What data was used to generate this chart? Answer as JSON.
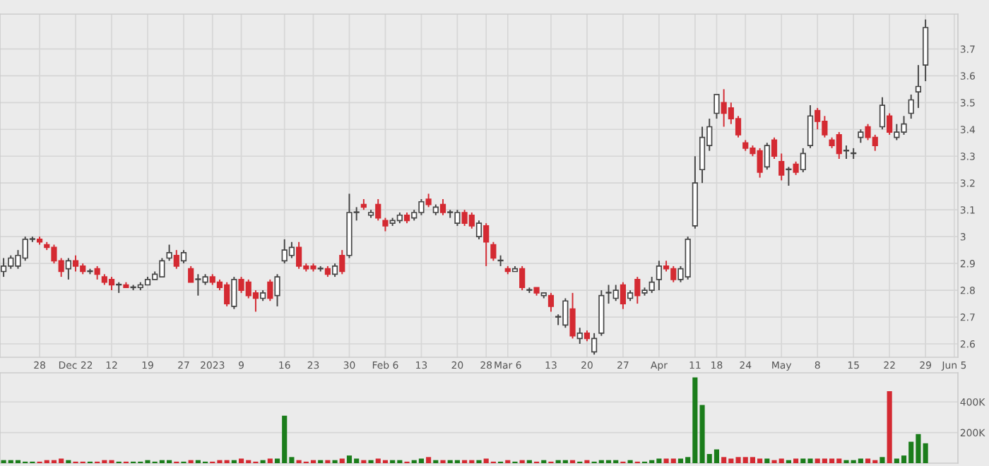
{
  "chart_data": [
    {
      "type": "candlestick",
      "grid": true,
      "ylim": [
        2.55,
        3.83
      ],
      "yticks": [
        2.6,
        2.7,
        2.8,
        2.9,
        3,
        3.1,
        3.2,
        3.3,
        3.4,
        3.5,
        3.6,
        3.7
      ],
      "categories": [
        null,
        null,
        null,
        null,
        null,
        "28",
        null,
        null,
        null,
        null,
        "Dec 22",
        null,
        null,
        null,
        null,
        "12",
        null,
        null,
        null,
        null,
        "19",
        null,
        null,
        null,
        null,
        "27",
        null,
        null,
        null,
        "2023",
        null,
        null,
        null,
        "9",
        null,
        null,
        null,
        null,
        null,
        "16",
        null,
        null,
        null,
        "23",
        null,
        null,
        null,
        null,
        "30",
        null,
        null,
        null,
        null,
        "Feb 6",
        null,
        null,
        null,
        null,
        "13",
        null,
        null,
        null,
        null,
        "20",
        null,
        null,
        null,
        "28",
        null,
        null,
        "Mar 6",
        null,
        null,
        null,
        null,
        null,
        "13",
        null,
        null,
        null,
        null,
        "20",
        null,
        null,
        null,
        null,
        "27",
        null,
        null,
        null,
        null,
        "Apr",
        null,
        null,
        null,
        null,
        "11",
        null,
        null,
        "18",
        null,
        null,
        null,
        "24",
        null,
        null,
        null,
        null,
        "May",
        null,
        null,
        null,
        null,
        "8",
        null,
        null,
        null,
        null,
        "15",
        null,
        null,
        null,
        null,
        "22",
        null,
        null,
        null,
        null,
        "29",
        null,
        null,
        null,
        "Jun 5"
      ],
      "ohlc": [
        [
          2.87,
          2.92,
          2.85,
          2.89
        ],
        [
          2.89,
          2.93,
          2.88,
          2.92
        ],
        [
          2.89,
          2.95,
          2.88,
          2.93
        ],
        [
          2.92,
          3.0,
          2.91,
          2.99
        ],
        [
          2.99,
          3.0,
          2.98,
          2.99
        ],
        [
          2.99,
          3.0,
          2.97,
          2.98
        ],
        [
          2.97,
          2.98,
          2.95,
          2.96
        ],
        [
          2.96,
          2.97,
          2.9,
          2.91
        ],
        [
          2.91,
          2.92,
          2.85,
          2.87
        ],
        [
          2.88,
          2.92,
          2.84,
          2.91
        ],
        [
          2.91,
          2.93,
          2.87,
          2.89
        ],
        [
          2.89,
          2.9,
          2.86,
          2.87
        ],
        [
          2.87,
          2.88,
          2.86,
          2.87
        ],
        [
          2.88,
          2.89,
          2.84,
          2.86
        ],
        [
          2.85,
          2.86,
          2.82,
          2.83
        ],
        [
          2.84,
          2.85,
          2.8,
          2.82
        ],
        [
          2.82,
          2.83,
          2.79,
          2.82
        ],
        [
          2.82,
          2.83,
          2.81,
          2.81
        ],
        [
          2.81,
          2.82,
          2.8,
          2.81
        ],
        [
          2.81,
          2.83,
          2.8,
          2.82
        ],
        [
          2.82,
          2.85,
          2.82,
          2.84
        ],
        [
          2.84,
          2.87,
          2.84,
          2.86
        ],
        [
          2.85,
          2.92,
          2.85,
          2.91
        ],
        [
          2.92,
          2.97,
          2.91,
          2.94
        ],
        [
          2.93,
          2.95,
          2.88,
          2.89
        ],
        [
          2.91,
          2.95,
          2.9,
          2.94
        ],
        [
          2.88,
          2.89,
          2.83,
          2.83
        ],
        [
          2.84,
          2.86,
          2.78,
          2.84
        ],
        [
          2.83,
          2.86,
          2.82,
          2.85
        ],
        [
          2.85,
          2.86,
          2.82,
          2.83
        ],
        [
          2.83,
          2.84,
          2.8,
          2.81
        ],
        [
          2.82,
          2.83,
          2.74,
          2.75
        ],
        [
          2.74,
          2.85,
          2.73,
          2.84
        ],
        [
          2.84,
          2.85,
          2.79,
          2.8
        ],
        [
          2.83,
          2.84,
          2.77,
          2.78
        ],
        [
          2.79,
          2.8,
          2.72,
          2.77
        ],
        [
          2.77,
          2.8,
          2.76,
          2.79
        ],
        [
          2.83,
          2.84,
          2.76,
          2.77
        ],
        [
          2.78,
          2.86,
          2.74,
          2.85
        ],
        [
          2.91,
          2.99,
          2.9,
          2.95
        ],
        [
          2.93,
          2.98,
          2.92,
          2.96
        ],
        [
          2.96,
          2.98,
          2.88,
          2.89
        ],
        [
          2.89,
          2.9,
          2.87,
          2.88
        ],
        [
          2.89,
          2.9,
          2.87,
          2.88
        ],
        [
          2.88,
          2.89,
          2.87,
          2.88
        ],
        [
          2.88,
          2.89,
          2.85,
          2.86
        ],
        [
          2.86,
          2.9,
          2.85,
          2.89
        ],
        [
          2.93,
          2.95,
          2.86,
          2.87
        ],
        [
          2.93,
          3.16,
          2.92,
          3.09
        ],
        [
          3.09,
          3.11,
          3.06,
          3.09
        ],
        [
          3.12,
          3.14,
          3.1,
          3.11
        ],
        [
          3.08,
          3.1,
          3.07,
          3.09
        ],
        [
          3.12,
          3.14,
          3.06,
          3.07
        ],
        [
          3.06,
          3.07,
          3.02,
          3.04
        ],
        [
          3.05,
          3.07,
          3.04,
          3.06
        ],
        [
          3.06,
          3.09,
          3.05,
          3.08
        ],
        [
          3.08,
          3.09,
          3.05,
          3.06
        ],
        [
          3.07,
          3.1,
          3.06,
          3.09
        ],
        [
          3.09,
          3.14,
          3.08,
          3.13
        ],
        [
          3.14,
          3.16,
          3.11,
          3.12
        ],
        [
          3.09,
          3.12,
          3.08,
          3.11
        ],
        [
          3.12,
          3.14,
          3.08,
          3.09
        ],
        [
          3.09,
          3.1,
          3.07,
          3.09
        ],
        [
          3.05,
          3.1,
          3.04,
          3.09
        ],
        [
          3.09,
          3.1,
          3.04,
          3.05
        ],
        [
          3.08,
          3.09,
          3.03,
          3.04
        ],
        [
          3.0,
          3.06,
          2.99,
          3.05
        ],
        [
          3.04,
          3.05,
          2.89,
          2.98
        ],
        [
          2.97,
          2.98,
          2.91,
          2.92
        ],
        [
          2.91,
          2.93,
          2.89,
          2.91
        ],
        [
          2.88,
          2.89,
          2.86,
          2.87
        ],
        [
          2.87,
          2.89,
          2.87,
          2.88
        ],
        [
          2.88,
          2.89,
          2.8,
          2.81
        ],
        [
          2.8,
          2.81,
          2.79,
          2.8
        ],
        [
          2.81,
          2.81,
          2.78,
          2.79
        ],
        [
          2.78,
          2.79,
          2.77,
          2.79
        ],
        [
          2.78,
          2.79,
          2.72,
          2.74
        ],
        [
          2.7,
          2.71,
          2.67,
          2.7
        ],
        [
          2.67,
          2.77,
          2.66,
          2.76
        ],
        [
          2.73,
          2.79,
          2.62,
          2.63
        ],
        [
          2.62,
          2.66,
          2.6,
          2.64
        ],
        [
          2.64,
          2.65,
          2.61,
          2.62
        ],
        [
          2.57,
          2.64,
          2.56,
          2.62
        ],
        [
          2.64,
          2.8,
          2.63,
          2.78
        ],
        [
          2.79,
          2.82,
          2.75,
          2.79
        ],
        [
          2.77,
          2.82,
          2.76,
          2.8
        ],
        [
          2.82,
          2.83,
          2.73,
          2.75
        ],
        [
          2.77,
          2.8,
          2.76,
          2.79
        ],
        [
          2.84,
          2.85,
          2.75,
          2.78
        ],
        [
          2.79,
          2.81,
          2.78,
          2.8
        ],
        [
          2.8,
          2.85,
          2.79,
          2.83
        ],
        [
          2.84,
          2.91,
          2.8,
          2.89
        ],
        [
          2.89,
          2.91,
          2.87,
          2.88
        ],
        [
          2.88,
          2.89,
          2.83,
          2.84
        ],
        [
          2.84,
          2.89,
          2.83,
          2.88
        ],
        [
          2.85,
          3.0,
          2.84,
          2.99
        ],
        [
          3.04,
          3.3,
          3.03,
          3.2
        ],
        [
          3.25,
          3.41,
          3.2,
          3.37
        ],
        [
          3.34,
          3.44,
          3.32,
          3.41
        ],
        [
          3.46,
          3.53,
          3.44,
          3.53
        ],
        [
          3.5,
          3.55,
          3.41,
          3.46
        ],
        [
          3.48,
          3.5,
          3.42,
          3.44
        ],
        [
          3.44,
          3.45,
          3.37,
          3.38
        ],
        [
          3.35,
          3.36,
          3.32,
          3.33
        ],
        [
          3.33,
          3.34,
          3.3,
          3.31
        ],
        [
          3.32,
          3.33,
          3.22,
          3.24
        ],
        [
          3.26,
          3.35,
          3.25,
          3.34
        ],
        [
          3.36,
          3.37,
          3.29,
          3.3
        ],
        [
          3.28,
          3.31,
          3.21,
          3.23
        ],
        [
          3.25,
          3.26,
          3.19,
          3.25
        ],
        [
          3.27,
          3.28,
          3.23,
          3.24
        ],
        [
          3.25,
          3.33,
          3.24,
          3.31
        ],
        [
          3.34,
          3.49,
          3.33,
          3.45
        ],
        [
          3.47,
          3.48,
          3.4,
          3.43
        ],
        [
          3.43,
          3.45,
          3.37,
          3.38
        ],
        [
          3.36,
          3.37,
          3.33,
          3.34
        ],
        [
          3.38,
          3.39,
          3.29,
          3.31
        ],
        [
          3.32,
          3.34,
          3.29,
          3.32
        ],
        [
          3.31,
          3.33,
          3.29,
          3.31
        ],
        [
          3.37,
          3.4,
          3.35,
          3.39
        ],
        [
          3.41,
          3.42,
          3.36,
          3.37
        ],
        [
          3.37,
          3.38,
          3.32,
          3.34
        ],
        [
          3.41,
          3.52,
          3.4,
          3.49
        ],
        [
          3.45,
          3.46,
          3.38,
          3.39
        ],
        [
          3.37,
          3.42,
          3.36,
          3.39
        ],
        [
          3.39,
          3.45,
          3.38,
          3.42
        ],
        [
          3.46,
          3.53,
          3.44,
          3.51
        ],
        [
          3.54,
          3.64,
          3.48,
          3.56
        ],
        [
          3.64,
          3.81,
          3.58,
          3.78
        ],
        null,
        null,
        null,
        null
      ],
      "colors": [
        "#ffffff",
        "#ffffff",
        "#ffffff",
        "#ffffff",
        "#ffffff",
        "#d42a32",
        "#d42a32",
        "#d42a32",
        "#d42a32",
        "#ffffff",
        "#d42a32",
        "#d42a32",
        "#ffffff",
        "#d42a32",
        "#d42a32",
        "#d42a32",
        "#ffffff",
        "#d42a32",
        "#ffffff",
        "#ffffff",
        "#ffffff",
        "#ffffff",
        "#ffffff",
        "#ffffff",
        "#d42a32",
        "#ffffff",
        "#d42a32",
        "#ffffff",
        "#ffffff",
        "#d42a32",
        "#d42a32",
        "#d42a32",
        "#ffffff",
        "#d42a32",
        "#d42a32",
        "#d42a32",
        "#ffffff",
        "#d42a32",
        "#ffffff",
        "#ffffff",
        "#ffffff",
        "#d42a32",
        "#d42a32",
        "#d42a32",
        "#ffffff",
        "#d42a32",
        "#ffffff",
        "#d42a32",
        "#ffffff",
        "#ffffff",
        "#d42a32",
        "#ffffff",
        "#d42a32",
        "#d42a32",
        "#ffffff",
        "#ffffff",
        "#d42a32",
        "#ffffff",
        "#ffffff",
        "#d42a32",
        "#ffffff",
        "#d42a32",
        "#ffffff",
        "#ffffff",
        "#d42a32",
        "#d42a32",
        "#ffffff",
        "#d42a32",
        "#d42a32",
        "#ffffff",
        "#d42a32",
        "#ffffff",
        "#d42a32",
        "#ffffff",
        "#d42a32",
        "#ffffff",
        "#d42a32",
        "#ffffff",
        "#ffffff",
        "#d42a32",
        "#ffffff",
        "#d42a32",
        "#ffffff",
        "#ffffff",
        "#ffffff",
        "#ffffff",
        "#d42a32",
        "#ffffff",
        "#d42a32",
        "#ffffff",
        "#ffffff",
        "#ffffff",
        "#d42a32",
        "#d42a32",
        "#ffffff",
        "#ffffff",
        "#ffffff",
        "#ffffff",
        "#ffffff",
        "#ffffff",
        "#d42a32",
        "#d42a32",
        "#d42a32",
        "#d42a32",
        "#d42a32",
        "#d42a32",
        "#ffffff",
        "#d42a32",
        "#d42a32",
        "#ffffff",
        "#d42a32",
        "#ffffff",
        "#ffffff",
        "#d42a32",
        "#d42a32",
        "#d42a32",
        "#d42a32",
        "#ffffff",
        "#ffffff",
        "#ffffff",
        "#d42a32",
        "#d42a32",
        "#ffffff",
        "#d42a32",
        "#ffffff",
        "#ffffff",
        "#ffffff",
        "#ffffff",
        "#ffffff",
        null,
        null,
        null,
        null
      ]
    },
    {
      "type": "bar",
      "grid": true,
      "tick_labels": "y",
      "ylim": [
        0,
        590000
      ],
      "yticks": [
        {
          "value": 200000,
          "label": "200K"
        },
        {
          "value": 400000,
          "label": "400K"
        }
      ],
      "categories": [
        null,
        null,
        null,
        null,
        null,
        null,
        null,
        null,
        null,
        null,
        null,
        null,
        null,
        null,
        null,
        null,
        null,
        null,
        null,
        null,
        null,
        null,
        null,
        null,
        null,
        null,
        null,
        null,
        null,
        null,
        null,
        null,
        null,
        null,
        null,
        null,
        null,
        null,
        null,
        null,
        null,
        null,
        null,
        null,
        null,
        null,
        null,
        null,
        null,
        null,
        null,
        null,
        null,
        null,
        null,
        null,
        null,
        null,
        null,
        null,
        null,
        null,
        null,
        null,
        null,
        null,
        null,
        null,
        null,
        null,
        null,
        null,
        null,
        null,
        null,
        null,
        null,
        null,
        null,
        null,
        null,
        null,
        null,
        null,
        null,
        null,
        null,
        null,
        null,
        null,
        null,
        null,
        null,
        null,
        null,
        null,
        null,
        null,
        null,
        null,
        null,
        null,
        null,
        null,
        null,
        null,
        null,
        null,
        null,
        null,
        null,
        null,
        null,
        null,
        null,
        null,
        null,
        null,
        null,
        null,
        null,
        null,
        null,
        null,
        null,
        null,
        null,
        null,
        null,
        null,
        null,
        null,
        null
      ],
      "values": [
        20000,
        20000,
        20000,
        10000,
        10000,
        10000,
        20000,
        20000,
        30000,
        20000,
        10000,
        10000,
        10000,
        10000,
        20000,
        20000,
        10000,
        10000,
        10000,
        10000,
        20000,
        10000,
        20000,
        20000,
        10000,
        10000,
        20000,
        20000,
        10000,
        10000,
        20000,
        20000,
        20000,
        30000,
        20000,
        10000,
        20000,
        30000,
        30000,
        310000,
        40000,
        20000,
        10000,
        20000,
        20000,
        20000,
        20000,
        30000,
        50000,
        30000,
        20000,
        20000,
        30000,
        20000,
        20000,
        20000,
        10000,
        20000,
        30000,
        40000,
        20000,
        20000,
        20000,
        20000,
        20000,
        20000,
        20000,
        30000,
        10000,
        10000,
        20000,
        10000,
        20000,
        20000,
        10000,
        20000,
        10000,
        20000,
        20000,
        20000,
        10000,
        20000,
        10000,
        20000,
        20000,
        20000,
        10000,
        20000,
        10000,
        10000,
        20000,
        30000,
        30000,
        30000,
        30000,
        40000,
        560000,
        380000,
        60000,
        90000,
        40000,
        30000,
        40000,
        40000,
        40000,
        30000,
        30000,
        20000,
        30000,
        20000,
        30000,
        30000,
        30000,
        30000,
        30000,
        30000,
        30000,
        20000,
        20000,
        30000,
        30000,
        20000,
        40000,
        470000,
        30000,
        50000,
        140000,
        190000,
        130000,
        null,
        null,
        null,
        null
      ],
      "colors": [
        "#1b7d1b",
        "#1b7d1b",
        "#1b7d1b",
        "#1b7d1b",
        "#1b7d1b",
        "#d42a32",
        "#d42a32",
        "#d42a32",
        "#d42a32",
        "#1b7d1b",
        "#d42a32",
        "#d42a32",
        "#1b7d1b",
        "#d42a32",
        "#d42a32",
        "#d42a32",
        "#1b7d1b",
        "#d42a32",
        "#1b7d1b",
        "#1b7d1b",
        "#1b7d1b",
        "#1b7d1b",
        "#1b7d1b",
        "#1b7d1b",
        "#d42a32",
        "#1b7d1b",
        "#d42a32",
        "#1b7d1b",
        "#1b7d1b",
        "#d42a32",
        "#d42a32",
        "#d42a32",
        "#1b7d1b",
        "#d42a32",
        "#d42a32",
        "#d42a32",
        "#1b7d1b",
        "#d42a32",
        "#1b7d1b",
        "#1b7d1b",
        "#1b7d1b",
        "#d42a32",
        "#d42a32",
        "#d42a32",
        "#1b7d1b",
        "#d42a32",
        "#1b7d1b",
        "#d42a32",
        "#1b7d1b",
        "#1b7d1b",
        "#d42a32",
        "#1b7d1b",
        "#d42a32",
        "#d42a32",
        "#1b7d1b",
        "#1b7d1b",
        "#d42a32",
        "#1b7d1b",
        "#1b7d1b",
        "#d42a32",
        "#1b7d1b",
        "#d42a32",
        "#1b7d1b",
        "#1b7d1b",
        "#d42a32",
        "#d42a32",
        "#1b7d1b",
        "#d42a32",
        "#d42a32",
        "#1b7d1b",
        "#d42a32",
        "#1b7d1b",
        "#d42a32",
        "#1b7d1b",
        "#d42a32",
        "#1b7d1b",
        "#d42a32",
        "#1b7d1b",
        "#1b7d1b",
        "#d42a32",
        "#1b7d1b",
        "#d42a32",
        "#1b7d1b",
        "#1b7d1b",
        "#1b7d1b",
        "#1b7d1b",
        "#d42a32",
        "#1b7d1b",
        "#d42a32",
        "#1b7d1b",
        "#1b7d1b",
        "#1b7d1b",
        "#d42a32",
        "#d42a32",
        "#1b7d1b",
        "#1b7d1b",
        "#1b7d1b",
        "#1b7d1b",
        "#1b7d1b",
        "#1b7d1b",
        "#d42a32",
        "#d42a32",
        "#d42a32",
        "#d42a32",
        "#d42a32",
        "#d42a32",
        "#1b7d1b",
        "#d42a32",
        "#d42a32",
        "#1b7d1b",
        "#d42a32",
        "#1b7d1b",
        "#1b7d1b",
        "#d42a32",
        "#d42a32",
        "#d42a32",
        "#d42a32",
        "#1b7d1b",
        "#1b7d1b",
        "#1b7d1b",
        "#d42a32",
        "#d42a32",
        "#1b7d1b",
        "#d42a32",
        "#1b7d1b",
        "#1b7d1b",
        "#1b7d1b",
        "#1b7d1b",
        "#1b7d1b",
        null,
        null,
        null,
        null
      ]
    }
  ]
}
